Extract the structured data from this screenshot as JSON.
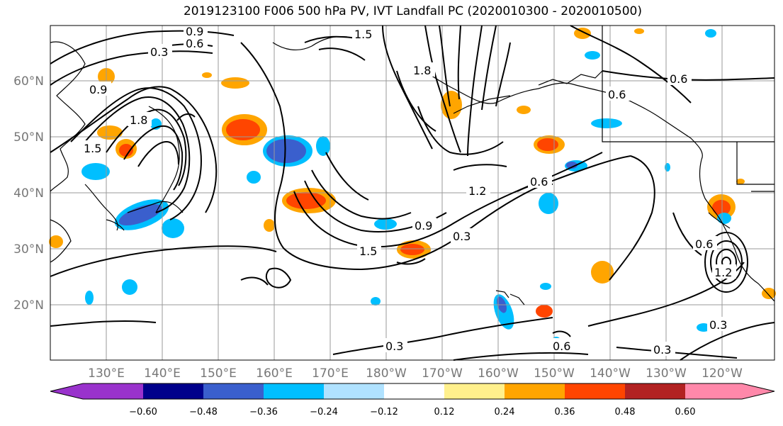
{
  "title": "2019123100 F006 500 hPa PV, IVT Landfall PC (2020010300 - 2020010500)",
  "lat_labels": [
    "60°N",
    "50°N",
    "40°N",
    "30°N",
    "20°N"
  ],
  "lon_labels": [
    "130°E",
    "140°E",
    "150°E",
    "160°E",
    "170°E",
    "180°W",
    "170°W",
    "160°W",
    "150°W",
    "140°W",
    "130°W",
    "120°W"
  ],
  "contour_labels": [
    "0.9",
    "0.6",
    "0.3",
    "1.5",
    "1.8",
    "0.9",
    "1.5",
    "1.8",
    "0.6",
    "1.2",
    "0.6",
    "0.9",
    "0.3",
    "1.5",
    "0.6",
    "0.6",
    "1.2",
    "0.3",
    "0.3",
    "0.3",
    "0.6"
  ],
  "colorbar": {
    "colors": [
      "#9932cc",
      "#00008b",
      "#3a5fcd",
      "#00bfff",
      "#b0e2ff",
      "#ffffff",
      "#fff08c",
      "#ffa500",
      "#ff4500",
      "#b22222",
      "#ff88aa",
      "#ff88aa"
    ],
    "ticks": [
      "−0.60",
      "−0.48",
      "−0.36",
      "−0.24",
      "−0.12",
      "0.12",
      "0.24",
      "0.36",
      "0.48",
      "0.60"
    ]
  }
}
